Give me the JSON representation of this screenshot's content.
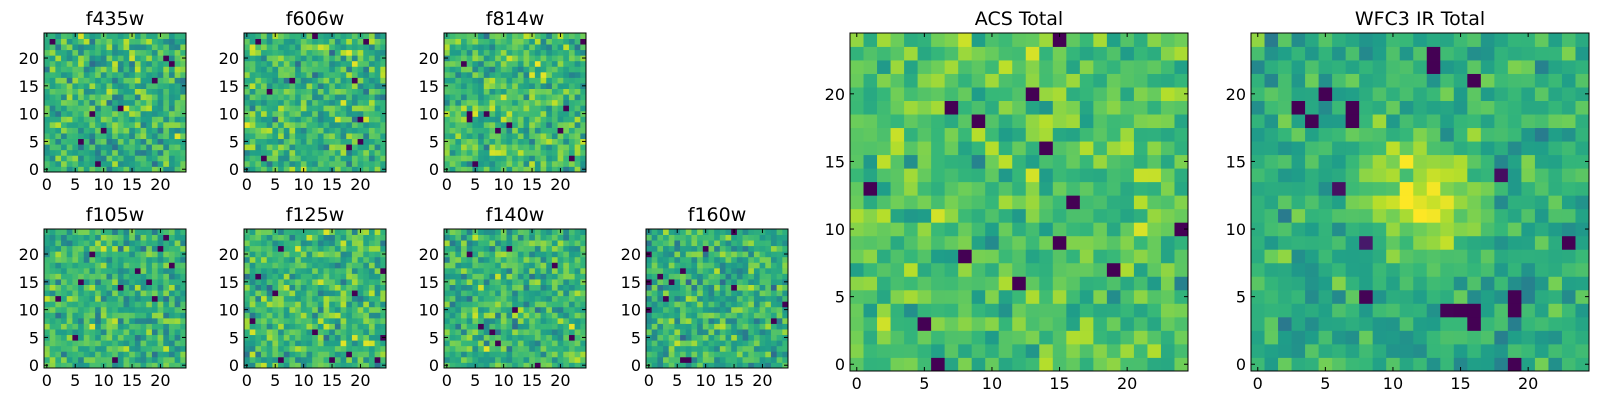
{
  "chart_data": [
    {
      "type": "heatmap",
      "title": "f435w",
      "xticks": [
        0,
        5,
        10,
        15,
        20
      ],
      "yticks": [
        0,
        5,
        10,
        15,
        20
      ],
      "xlim": [
        -0.5,
        24.5
      ],
      "ylim": [
        -0.5,
        24.5
      ],
      "size": 25,
      "colormap": "viridis",
      "range": [
        0.25,
        0.85
      ],
      "mean": 0.64,
      "spread": 0.1,
      "seed": 11
    },
    {
      "type": "heatmap",
      "title": "f606w",
      "xticks": [
        0,
        5,
        10,
        15,
        20
      ],
      "yticks": [
        0,
        5,
        10,
        15,
        20
      ],
      "xlim": [
        -0.5,
        24.5
      ],
      "ylim": [
        -0.5,
        24.5
      ],
      "size": 25,
      "colormap": "viridis",
      "range": [
        0.25,
        0.85
      ],
      "mean": 0.65,
      "spread": 0.1,
      "seed": 23
    },
    {
      "type": "heatmap",
      "title": "f814w",
      "xticks": [
        0,
        5,
        10,
        15,
        20
      ],
      "yticks": [
        0,
        5,
        10,
        15,
        20
      ],
      "xlim": [
        -0.5,
        24.5
      ],
      "ylim": [
        -0.5,
        24.5
      ],
      "size": 25,
      "colormap": "viridis",
      "range": [
        0.25,
        0.85
      ],
      "mean": 0.66,
      "spread": 0.1,
      "seed": 37
    },
    {
      "type": "heatmap",
      "title": "f105w",
      "xticks": [
        0,
        5,
        10,
        15,
        20
      ],
      "yticks": [
        0,
        5,
        10,
        15,
        20
      ],
      "xlim": [
        -0.5,
        24.5
      ],
      "ylim": [
        -0.5,
        24.5
      ],
      "size": 25,
      "colormap": "viridis",
      "range": [
        0.25,
        0.85
      ],
      "mean": 0.64,
      "spread": 0.1,
      "seed": 41
    },
    {
      "type": "heatmap",
      "title": "f125w",
      "xticks": [
        0,
        5,
        10,
        15,
        20
      ],
      "yticks": [
        0,
        5,
        10,
        15,
        20
      ],
      "xlim": [
        -0.5,
        24.5
      ],
      "ylim": [
        -0.5,
        24.5
      ],
      "size": 25,
      "colormap": "viridis",
      "range": [
        0.25,
        0.85
      ],
      "mean": 0.65,
      "spread": 0.1,
      "seed": 53
    },
    {
      "type": "heatmap",
      "title": "f140w",
      "xticks": [
        0,
        5,
        10,
        15,
        20
      ],
      "yticks": [
        0,
        5,
        10,
        15,
        20
      ],
      "xlim": [
        -0.5,
        24.5
      ],
      "ylim": [
        -0.5,
        24.5
      ],
      "size": 25,
      "colormap": "viridis",
      "range": [
        0.25,
        0.85
      ],
      "mean": 0.64,
      "spread": 0.1,
      "seed": 67
    },
    {
      "type": "heatmap",
      "title": "f160w",
      "xticks": [
        0,
        5,
        10,
        15,
        20
      ],
      "yticks": [
        0,
        5,
        10,
        15,
        20
      ],
      "xlim": [
        -0.5,
        24.5
      ],
      "ylim": [
        -0.5,
        24.5
      ],
      "size": 25,
      "colormap": "viridis",
      "range": [
        0.25,
        0.85
      ],
      "mean": 0.63,
      "spread": 0.1,
      "seed": 79
    },
    {
      "type": "heatmap",
      "title": "ACS Total",
      "xticks": [
        0,
        5,
        10,
        15,
        20
      ],
      "yticks": [
        0,
        5,
        10,
        15,
        20
      ],
      "xlim": [
        -0.5,
        24.5
      ],
      "ylim": [
        -0.5,
        24.5
      ],
      "size": 25,
      "colormap": "viridis",
      "range": [
        0.25,
        0.85
      ],
      "mean": 0.68,
      "spread": 0.08,
      "seed": 97
    },
    {
      "type": "heatmap",
      "title": "WFC3 IR Total",
      "xticks": [
        0,
        5,
        10,
        15,
        20
      ],
      "yticks": [
        0,
        5,
        10,
        15,
        20
      ],
      "xlim": [
        -0.5,
        24.5
      ],
      "ylim": [
        -0.5,
        24.5
      ],
      "size": 25,
      "colormap": "viridis",
      "range": [
        0.25,
        0.85
      ],
      "mean": 0.62,
      "spread": 0.07,
      "seed": 113,
      "peak": {
        "x": 12,
        "y": 12.5,
        "amplitude": 0.2
      },
      "dark_pixels": [
        [
          16,
          3
        ],
        [
          16,
          4
        ],
        [
          15,
          4
        ],
        [
          3,
          19
        ],
        [
          7,
          19
        ],
        [
          7,
          18
        ],
        [
          13,
          22
        ],
        [
          13,
          23
        ],
        [
          16,
          21
        ]
      ]
    }
  ]
}
